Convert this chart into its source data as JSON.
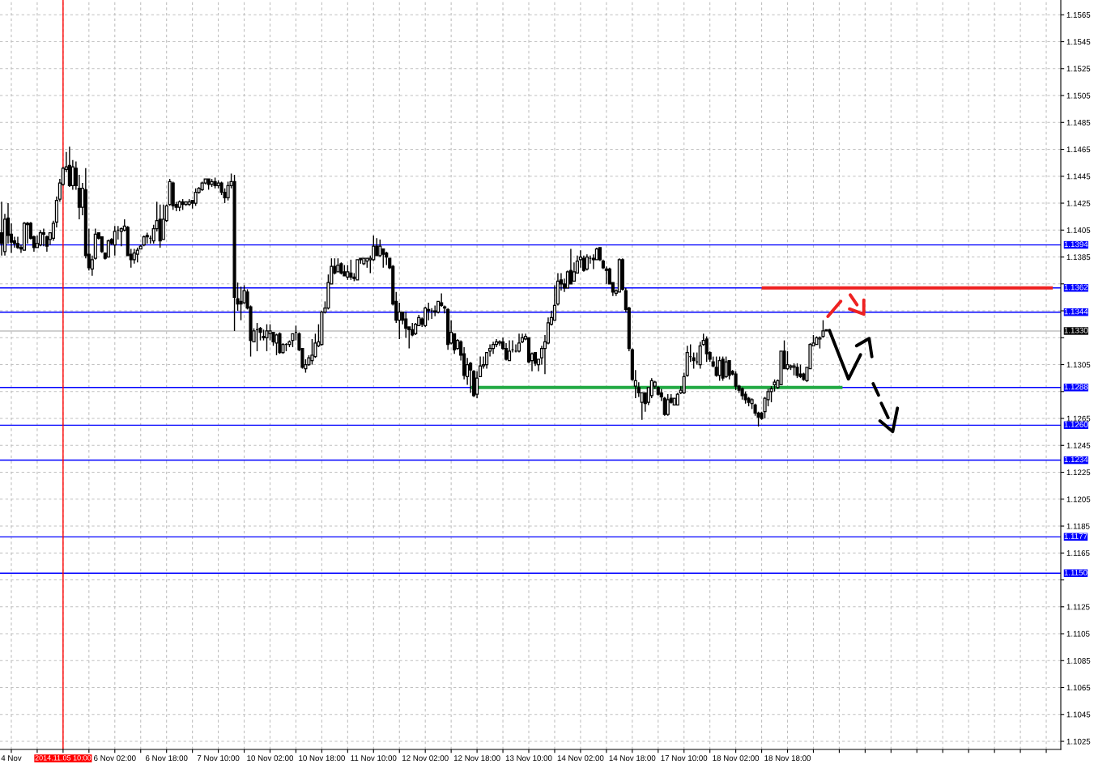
{
  "chart_data": {
    "type": "candlestick",
    "color": "#000000",
    "categories": [
      null,
      null,
      null,
      "4 Nov",
      null,
      null,
      null,
      null,
      null,
      null,
      null,
      null,
      null,
      null,
      null,
      null,
      null,
      null,
      null,
      "2014.11.05 10:00",
      null,
      null,
      null,
      null,
      null,
      null,
      null,
      null,
      null,
      null,
      null,
      null,
      null,
      null,
      null,
      "6 Nov 02:00",
      null,
      null,
      null,
      null,
      null,
      null,
      null,
      null,
      null,
      null,
      null,
      null,
      null,
      null,
      null,
      "6 Nov 18:00",
      null,
      null,
      null,
      null,
      null,
      null,
      null,
      null,
      null,
      null,
      null,
      null,
      null,
      null,
      null,
      "7 Nov 10:00",
      null,
      null,
      null,
      null,
      null,
      null,
      null,
      null,
      null,
      null,
      null,
      null,
      null,
      null,
      null,
      "10 Nov 02:00",
      null,
      null,
      null,
      null,
      null,
      null,
      null,
      null,
      null,
      null,
      null,
      null,
      null,
      null,
      null,
      "10 Nov 18:00",
      null,
      null,
      null,
      null,
      null,
      null,
      null,
      null,
      null,
      null,
      null,
      null,
      null,
      null,
      null,
      "11 Nov 10:00",
      null,
      null,
      null,
      null,
      null,
      null,
      null,
      null,
      null,
      null,
      null,
      null,
      null,
      null,
      null,
      "12 Nov 02:00",
      null,
      null,
      null,
      null,
      null,
      null,
      null,
      null,
      null,
      null,
      null,
      null,
      null,
      null,
      null,
      "12 Nov 18:00",
      null,
      null,
      null,
      null,
      null,
      null,
      null,
      null,
      null,
      null,
      null,
      null,
      null,
      null,
      null,
      "13 Nov 10:00",
      null,
      null,
      null,
      null,
      null,
      null,
      null,
      null,
      null,
      null,
      null,
      null,
      null,
      null,
      null,
      "14 Nov 02:00",
      null,
      null,
      null,
      null,
      null,
      null,
      null,
      null,
      null,
      null,
      null,
      null,
      null,
      null,
      null,
      "14 Nov 18:00",
      null,
      null,
      null,
      null,
      null,
      null,
      null,
      null,
      null,
      null,
      null,
      null,
      null,
      null,
      null,
      "17 Nov 10:00",
      null,
      null,
      null,
      null,
      null,
      null,
      null,
      null,
      null,
      null,
      null,
      null,
      null,
      null,
      null,
      "18 Nov 02:00",
      null,
      null,
      null,
      null,
      null,
      null,
      null,
      null,
      null,
      null,
      null,
      null,
      null,
      null,
      null,
      "18 Nov 18:00",
      null,
      null,
      null,
      null,
      null,
      null,
      null,
      null,
      null,
      null,
      null,
      null,
      null,
      null,
      null,
      null,
      null,
      null,
      null,
      null,
      null,
      null,
      null,
      null,
      null,
      null,
      null,
      null,
      null,
      null,
      null,
      null,
      null,
      null,
      null,
      null,
      null,
      null,
      null,
      null,
      null,
      null,
      null,
      null,
      null,
      null,
      null,
      null,
      null,
      null,
      null,
      null,
      null,
      null,
      null,
      null,
      null,
      null,
      null,
      null,
      null,
      null,
      null,
      null,
      null,
      null,
      null,
      null,
      null,
      null,
      null,
      null,
      null,
      null,
      null,
      null,
      null,
      null,
      null,
      null,
      null,
      null,
      null,
      null
    ],
    "ohlc": [
      [
        1.1403,
        1.1426,
        1.1386,
        1.1395
      ],
      [
        1.1389,
        1.1417,
        1.1386,
        1.1413
      ],
      [
        1.1414,
        1.1425,
        1.1395,
        1.1401
      ],
      [
        1.1402,
        1.141,
        1.1388,
        1.1396
      ],
      [
        1.1397,
        1.14,
        1.1392,
        1.1395
      ],
      [
        1.1395,
        1.14,
        1.1391,
        1.1392
      ],
      [
        1.1392,
        1.1394,
        1.1388,
        1.1391
      ],
      [
        1.139,
        1.1411,
        1.139,
        1.141
      ],
      [
        1.141,
        1.1411,
        1.1395,
        1.1409
      ],
      [
        1.141,
        1.1411,
        1.1398,
        1.1399
      ],
      [
        1.14,
        1.1401,
        1.1389,
        1.1392
      ],
      [
        1.1392,
        1.1401,
        1.1392,
        1.1395
      ],
      [
        1.1394,
        1.1405,
        1.1393,
        1.1403
      ],
      [
        1.1403,
        1.1406,
        1.1393,
        1.1402
      ],
      [
        1.14,
        1.1401,
        1.1389,
        1.1393
      ],
      [
        1.1398,
        1.1403,
        1.1394,
        1.1403
      ],
      [
        1.1399,
        1.1412,
        1.1397,
        1.141
      ],
      [
        1.1411,
        1.143,
        1.1407,
        1.1427
      ],
      [
        1.1428,
        1.1443,
        1.1426,
        1.144
      ],
      [
        1.1439,
        1.1452,
        1.1438,
        1.1451
      ],
      [
        1.145,
        1.1463,
        1.1448,
        1.1452
      ],
      [
        1.1453,
        1.1467,
        1.1437,
        1.1438
      ],
      [
        1.1438,
        1.1457,
        1.1435,
        1.1452
      ],
      [
        1.1451,
        1.1456,
        1.1435,
        1.1438
      ],
      [
        1.1436,
        1.1446,
        1.1413,
        1.1422
      ],
      [
        1.1422,
        1.144,
        1.1416,
        1.1436
      ],
      [
        1.1435,
        1.1451,
        1.1384,
        1.1386
      ],
      [
        1.1387,
        1.1406,
        1.1375,
        1.1377
      ],
      [
        1.1376,
        1.1386,
        1.1371,
        1.1383
      ],
      [
        1.1384,
        1.1406,
        1.1383,
        1.1402
      ],
      [
        1.1403,
        1.1403,
        1.1398,
        1.1399
      ],
      [
        1.14,
        1.14,
        1.1388,
        1.1389
      ],
      [
        1.1388,
        1.1388,
        1.1383,
        1.1384
      ],
      [
        1.1385,
        1.1398,
        1.1385,
        1.1397
      ],
      [
        1.1398,
        1.1399,
        1.1394,
        1.1395
      ],
      [
        1.1394,
        1.1408,
        1.1386,
        1.1404
      ],
      [
        1.1405,
        1.1408,
        1.1398,
        1.1405
      ],
      [
        1.1404,
        1.1407,
        1.1393,
        1.1406
      ],
      [
        1.1405,
        1.1413,
        1.1404,
        1.1408
      ],
      [
        1.1407,
        1.1408,
        1.1386,
        1.1386
      ],
      [
        1.1387,
        1.1391,
        1.1377,
        1.1383
      ],
      [
        1.1383,
        1.1391,
        1.138,
        1.1388
      ],
      [
        1.1387,
        1.1392,
        1.1381,
        1.139
      ],
      [
        1.1391,
        1.1394,
        1.1391,
        1.1393
      ],
      [
        1.1394,
        1.1401,
        1.1393,
        1.14
      ],
      [
        1.1401,
        1.1403,
        1.1395,
        1.14
      ],
      [
        1.1399,
        1.1401,
        1.1395,
        1.1399
      ],
      [
        1.1397,
        1.1409,
        1.1395,
        1.1406
      ],
      [
        1.1406,
        1.1426,
        1.1404,
        1.1412
      ],
      [
        1.1413,
        1.1424,
        1.1392,
        1.1397
      ],
      [
        1.1398,
        1.1424,
        1.1398,
        1.1413
      ],
      [
        1.1412,
        1.1424,
        1.1411,
        1.1423
      ],
      [
        1.1424,
        1.1443,
        1.1423,
        1.1441
      ],
      [
        1.144,
        1.1441,
        1.142,
        1.1423
      ],
      [
        1.1424,
        1.1426,
        1.1419,
        1.1422
      ],
      [
        1.1422,
        1.1427,
        1.1419,
        1.1426
      ],
      [
        1.1426,
        1.1428,
        1.142,
        1.1424
      ],
      [
        1.1424,
        1.1426,
        1.1423,
        1.1426
      ],
      [
        1.1424,
        1.1428,
        1.1423,
        1.1426
      ],
      [
        1.1427,
        1.1427,
        1.1421,
        1.1425
      ],
      [
        1.1425,
        1.1436,
        1.1423,
        1.1433
      ],
      [
        1.1433,
        1.1437,
        1.1432,
        1.1436
      ],
      [
        1.1435,
        1.1441,
        1.1434,
        1.144
      ],
      [
        1.144,
        1.1443,
        1.1439,
        1.1443
      ],
      [
        1.1443,
        1.1443,
        1.1435,
        1.1439
      ],
      [
        1.1439,
        1.1443,
        1.1437,
        1.1441
      ],
      [
        1.1441,
        1.1444,
        1.1436,
        1.1438
      ],
      [
        1.1438,
        1.1442,
        1.1436,
        1.144
      ],
      [
        1.144,
        1.1441,
        1.1431,
        1.1433
      ],
      [
        1.1433,
        1.1436,
        1.1425,
        1.1429
      ],
      [
        1.1429,
        1.1441,
        1.1427,
        1.1438
      ],
      [
        1.1438,
        1.1447,
        1.1436,
        1.1441
      ],
      [
        1.1441,
        1.1446,
        1.133,
        1.1355
      ],
      [
        1.1354,
        1.1366,
        1.1345,
        1.135
      ],
      [
        1.1352,
        1.1363,
        1.1338,
        1.135
      ],
      [
        1.1351,
        1.1364,
        1.135,
        1.136
      ],
      [
        1.1359,
        1.1361,
        1.1346,
        1.1347
      ],
      [
        1.1348,
        1.1349,
        1.1311,
        1.1323
      ],
      [
        1.1322,
        1.1332,
        1.1322,
        1.133
      ],
      [
        1.1331,
        1.1336,
        1.1315,
        1.1331
      ],
      [
        1.1332,
        1.1333,
        1.1323,
        1.1329
      ],
      [
        1.1326,
        1.1331,
        1.1323,
        1.1325
      ],
      [
        1.1325,
        1.1335,
        1.1315,
        1.133
      ],
      [
        1.1328,
        1.1335,
        1.1323,
        1.133
      ],
      [
        1.1329,
        1.1329,
        1.1319,
        1.1322
      ],
      [
        1.1321,
        1.1328,
        1.1312,
        1.1327
      ],
      [
        1.1328,
        1.1329,
        1.1313,
        1.1314
      ],
      [
        1.1314,
        1.1321,
        1.1313,
        1.132
      ],
      [
        1.132,
        1.1321,
        1.1315,
        1.132
      ],
      [
        1.132,
        1.1323,
        1.1318,
        1.1322
      ],
      [
        1.1323,
        1.1328,
        1.1318,
        1.1328
      ],
      [
        1.1329,
        1.1334,
        1.1323,
        1.1329
      ],
      [
        1.1328,
        1.1329,
        1.1315,
        1.1316
      ],
      [
        1.1317,
        1.1317,
        1.1302,
        1.1303
      ],
      [
        1.1302,
        1.1309,
        1.1299,
        1.1305
      ],
      [
        1.1305,
        1.1312,
        1.1304,
        1.131
      ],
      [
        1.1308,
        1.1324,
        1.1305,
        1.1312
      ],
      [
        1.1311,
        1.1328,
        1.131,
        1.1321
      ],
      [
        1.1319,
        1.1335,
        1.1318,
        1.1322
      ],
      [
        1.132,
        1.1345,
        1.1319,
        1.1344
      ],
      [
        1.1344,
        1.1352,
        1.1343,
        1.1347
      ],
      [
        1.1347,
        1.1372,
        1.1346,
        1.1366
      ],
      [
        1.1365,
        1.1384,
        1.1365,
        1.1378
      ],
      [
        1.1378,
        1.1384,
        1.1372,
        1.1373
      ],
      [
        1.1374,
        1.1384,
        1.1374,
        1.1379
      ],
      [
        1.138,
        1.1381,
        1.1372,
        1.1373
      ],
      [
        1.1374,
        1.1379,
        1.1371,
        1.1371
      ],
      [
        1.137,
        1.1379,
        1.1368,
        1.1374
      ],
      [
        1.1373,
        1.1383,
        1.1368,
        1.137
      ],
      [
        1.137,
        1.1373,
        1.1367,
        1.1369
      ],
      [
        1.1368,
        1.1383,
        1.1368,
        1.1383
      ],
      [
        1.1384,
        1.1384,
        1.138,
        1.1383
      ],
      [
        1.138,
        1.1384,
        1.1379,
        1.1384
      ],
      [
        1.1382,
        1.1384,
        1.1377,
        1.1384
      ],
      [
        1.1383,
        1.1386,
        1.1373,
        1.1384
      ],
      [
        1.1383,
        1.1401,
        1.1382,
        1.1393
      ],
      [
        1.1393,
        1.1399,
        1.1386,
        1.1386
      ],
      [
        1.1386,
        1.1398,
        1.1385,
        1.1393
      ],
      [
        1.1391,
        1.1391,
        1.1377,
        1.1387
      ],
      [
        1.1388,
        1.1389,
        1.1379,
        1.1385
      ],
      [
        1.1384,
        1.1384,
        1.1376,
        1.1377
      ],
      [
        1.1378,
        1.1379,
        1.1349,
        1.135
      ],
      [
        1.1352,
        1.1359,
        1.1336,
        1.1338
      ],
      [
        1.1338,
        1.1351,
        1.1324,
        1.1344
      ],
      [
        1.1344,
        1.1344,
        1.1335,
        1.1338
      ],
      [
        1.1339,
        1.1344,
        1.1325,
        1.1332
      ],
      [
        1.1333,
        1.1333,
        1.1317,
        1.1331
      ],
      [
        1.1331,
        1.1336,
        1.1326,
        1.1327
      ],
      [
        1.1328,
        1.1336,
        1.1327,
        1.1335
      ],
      [
        1.1334,
        1.1342,
        1.1334,
        1.134
      ],
      [
        1.1339,
        1.134,
        1.1333,
        1.1335
      ],
      [
        1.1334,
        1.1348,
        1.1333,
        1.1347
      ],
      [
        1.1346,
        1.1351,
        1.1338,
        1.1345
      ],
      [
        1.1345,
        1.1347,
        1.1339,
        1.1345
      ],
      [
        1.1345,
        1.1349,
        1.1341,
        1.1344
      ],
      [
        1.1344,
        1.1352,
        1.1343,
        1.1352
      ],
      [
        1.1351,
        1.1358,
        1.1348,
        1.1349
      ],
      [
        1.1348,
        1.1349,
        1.1343,
        1.1347
      ],
      [
        1.1346,
        1.1347,
        1.1316,
        1.132
      ],
      [
        1.1321,
        1.1338,
        1.132,
        1.1329
      ],
      [
        1.1328,
        1.1328,
        1.1313,
        1.1316
      ],
      [
        1.1317,
        1.1324,
        1.1316,
        1.1323
      ],
      [
        1.1322,
        1.1323,
        1.1308,
        1.1312
      ],
      [
        1.1313,
        1.1318,
        1.1294,
        1.1297
      ],
      [
        1.1296,
        1.131,
        1.129,
        1.1305
      ],
      [
        1.1306,
        1.1307,
        1.1284,
        1.1301
      ],
      [
        1.13,
        1.1301,
        1.1281,
        1.1282
      ],
      [
        1.1283,
        1.13,
        1.128,
        1.1295
      ],
      [
        1.1296,
        1.1311,
        1.1296,
        1.1304
      ],
      [
        1.1304,
        1.1311,
        1.1302,
        1.1305
      ],
      [
        1.1305,
        1.1314,
        1.1302,
        1.1314
      ],
      [
        1.1315,
        1.132,
        1.1311,
        1.1317
      ],
      [
        1.1317,
        1.1322,
        1.1313,
        1.132
      ],
      [
        1.132,
        1.1324,
        1.1318,
        1.1322
      ],
      [
        1.1321,
        1.1323,
        1.1319,
        1.1322
      ],
      [
        1.1322,
        1.1325,
        1.1316,
        1.1317
      ],
      [
        1.1317,
        1.1321,
        1.1308,
        1.1309
      ],
      [
        1.1308,
        1.1323,
        1.1308,
        1.1315
      ],
      [
        1.1316,
        1.1323,
        1.1314,
        1.1316
      ],
      [
        1.1315,
        1.132,
        1.1314,
        1.1315
      ],
      [
        1.1315,
        1.1328,
        1.1314,
        1.1321
      ],
      [
        1.1322,
        1.1328,
        1.1321,
        1.1325
      ],
      [
        1.1324,
        1.1328,
        1.1323,
        1.1326
      ],
      [
        1.1325,
        1.1325,
        1.1306,
        1.1307
      ],
      [
        1.1308,
        1.1314,
        1.13,
        1.1313
      ],
      [
        1.1314,
        1.1314,
        1.1304,
        1.1306
      ],
      [
        1.1305,
        1.1309,
        1.13,
        1.1309
      ],
      [
        1.131,
        1.1319,
        1.1305,
        1.1317
      ],
      [
        1.1317,
        1.1327,
        1.1298,
        1.1322
      ],
      [
        1.1321,
        1.134,
        1.132,
        1.1336
      ],
      [
        1.1335,
        1.1345,
        1.1334,
        1.134
      ],
      [
        1.1338,
        1.1364,
        1.1338,
        1.1349
      ],
      [
        1.135,
        1.1373,
        1.1349,
        1.1367
      ],
      [
        1.1368,
        1.1373,
        1.136,
        1.1365
      ],
      [
        1.1365,
        1.1369,
        1.1359,
        1.1362
      ],
      [
        1.1362,
        1.1375,
        1.1362,
        1.1374
      ],
      [
        1.1375,
        1.1391,
        1.1365,
        1.1365
      ],
      [
        1.1367,
        1.1381,
        1.1367,
        1.1374
      ],
      [
        1.1373,
        1.1386,
        1.1373,
        1.1382
      ],
      [
        1.1383,
        1.139,
        1.1377,
        1.1385
      ],
      [
        1.1384,
        1.1386,
        1.1374,
        1.1375
      ],
      [
        1.1376,
        1.1387,
        1.1375,
        1.1385
      ],
      [
        1.1384,
        1.1386,
        1.138,
        1.1384
      ],
      [
        1.1384,
        1.1387,
        1.1376,
        1.1383
      ],
      [
        1.1383,
        1.1392,
        1.1383,
        1.1391
      ],
      [
        1.1392,
        1.1392,
        1.1382,
        1.1383
      ],
      [
        1.1382,
        1.1383,
        1.1376,
        1.1377
      ],
      [
        1.1376,
        1.1378,
        1.1365,
        1.1375
      ],
      [
        1.1376,
        1.1377,
        1.1365,
        1.1365
      ],
      [
        1.1366,
        1.1366,
        1.1356,
        1.1359
      ],
      [
        1.1358,
        1.1361,
        1.1356,
        1.136
      ],
      [
        1.1359,
        1.1384,
        1.1359,
        1.1383
      ],
      [
        1.1383,
        1.1384,
        1.136,
        1.1361
      ],
      [
        1.136,
        1.1362,
        1.1344,
        1.1346
      ],
      [
        1.1347,
        1.1348,
        1.1315,
        1.1317
      ],
      [
        1.1316,
        1.1317,
        1.1293,
        1.1294
      ],
      [
        1.1289,
        1.1301,
        1.128,
        1.1293
      ],
      [
        1.1288,
        1.1292,
        1.1281,
        1.1284
      ],
      [
        1.1277,
        1.1284,
        1.1264,
        1.1284
      ],
      [
        1.1284,
        1.1284,
        1.127,
        1.1276
      ],
      [
        1.1277,
        1.1288,
        1.1275,
        1.1288
      ],
      [
        1.1282,
        1.1295,
        1.128,
        1.1293
      ],
      [
        1.1289,
        1.1293,
        1.1287,
        1.1292
      ],
      [
        1.1288,
        1.1289,
        1.1282,
        1.1283
      ],
      [
        1.1284,
        1.1287,
        1.1278,
        1.1281
      ],
      [
        1.128,
        1.1281,
        1.1267,
        1.1268
      ],
      [
        1.1268,
        1.1283,
        1.1267,
        1.1279
      ],
      [
        1.128,
        1.1283,
        1.1276,
        1.1277
      ],
      [
        1.1275,
        1.128,
        1.1275,
        1.128
      ],
      [
        1.1275,
        1.1284,
        1.1275,
        1.1283
      ],
      [
        1.1284,
        1.1289,
        1.1283,
        1.1286
      ],
      [
        1.1284,
        1.1299,
        1.1283,
        1.1296
      ],
      [
        1.1297,
        1.1319,
        1.1296,
        1.1314
      ],
      [
        1.1311,
        1.132,
        1.1307,
        1.1311
      ],
      [
        1.131,
        1.1314,
        1.1302,
        1.1308
      ],
      [
        1.1307,
        1.1314,
        1.1305,
        1.1307
      ],
      [
        1.1305,
        1.1322,
        1.1302,
        1.1319
      ],
      [
        1.132,
        1.1328,
        1.1319,
        1.1323
      ],
      [
        1.1324,
        1.1326,
        1.1307,
        1.1313
      ],
      [
        1.1314,
        1.1315,
        1.1307,
        1.1309
      ],
      [
        1.1307,
        1.1311,
        1.1303,
        1.1304
      ],
      [
        1.1303,
        1.1311,
        1.1296,
        1.1297
      ],
      [
        1.1297,
        1.1311,
        1.1293,
        1.1308
      ],
      [
        1.1309,
        1.1311,
        1.1293,
        1.1295
      ],
      [
        1.1296,
        1.1311,
        1.1295,
        1.1307
      ],
      [
        1.1308,
        1.1308,
        1.1294,
        1.1297
      ],
      [
        1.13,
        1.1301,
        1.1297,
        1.1298
      ],
      [
        1.1298,
        1.13,
        1.1286,
        1.1289
      ],
      [
        1.1289,
        1.129,
        1.1284,
        1.1286
      ],
      [
        1.1287,
        1.1288,
        1.1279,
        1.1282
      ],
      [
        1.1283,
        1.1285,
        1.1276,
        1.1279
      ],
      [
        1.128,
        1.1281,
        1.1274,
        1.1277
      ],
      [
        1.1276,
        1.128,
        1.1272,
        1.1279
      ],
      [
        1.1275,
        1.1276,
        1.1267,
        1.1269
      ],
      [
        1.1269,
        1.127,
        1.1259,
        1.1266
      ],
      [
        1.1269,
        1.127,
        1.1264,
        1.1265
      ],
      [
        1.127,
        1.1281,
        1.1265,
        1.128
      ],
      [
        1.1279,
        1.1287,
        1.1274,
        1.1285
      ],
      [
        1.1285,
        1.1289,
        1.1277,
        1.1287
      ],
      [
        1.129,
        1.1294,
        1.1285,
        1.1292
      ],
      [
        1.1288,
        1.1294,
        1.1287,
        1.1293
      ],
      [
        1.129,
        1.1315,
        1.129,
        1.1315
      ],
      [
        1.1315,
        1.1323,
        1.1302,
        1.1302
      ],
      [
        1.1302,
        1.1315,
        1.1301,
        1.1305
      ],
      [
        1.1303,
        1.1305,
        1.1301,
        1.1304
      ],
      [
        1.1303,
        1.1306,
        1.1297,
        1.1304
      ],
      [
        1.1303,
        1.1306,
        1.1295,
        1.1297
      ],
      [
        1.1298,
        1.1305,
        1.1295,
        1.1296
      ],
      [
        1.1298,
        1.1299,
        1.1293,
        1.1294
      ],
      [
        1.1293,
        1.1303,
        1.1292,
        1.1303
      ],
      [
        1.1302,
        1.1321,
        1.1302,
        1.132
      ],
      [
        1.1319,
        1.1327,
        1.1319,
        1.1321
      ],
      [
        1.132,
        1.1326,
        1.132,
        1.1325
      ],
      [
        1.1324,
        1.1326,
        1.1317,
        1.1325
      ],
      [
        1.1326,
        1.1338,
        1.1325,
        1.133
      ],
      [
        1.1331,
        1.1331,
        1.133,
        1.133
      ],
      null,
      null,
      null,
      null,
      null,
      null,
      null,
      null,
      null,
      null,
      null,
      null,
      null,
      null,
      null,
      null,
      null,
      null,
      null,
      null,
      null,
      null,
      null,
      null,
      null,
      null,
      null,
      null,
      null,
      null,
      null,
      null,
      null,
      null,
      null,
      null,
      null,
      null,
      null,
      null,
      null,
      null,
      null,
      null,
      null,
      null,
      null,
      null,
      null,
      null,
      null,
      null,
      null,
      null,
      null,
      null,
      null,
      null,
      null,
      null,
      null,
      null,
      null,
      null,
      null,
      null,
      null,
      null,
      null,
      null,
      null,
      null
    ],
    "series": [
      {
        "type": "line",
        "color": "#22aa44",
        "values": [
          null,
          null,
          null,
          null,
          null,
          null,
          null,
          null,
          null,
          null,
          null,
          null,
          null,
          null,
          null,
          null,
          null,
          null,
          null,
          null,
          null,
          null,
          null,
          null,
          null,
          null,
          null,
          null,
          null,
          null,
          null,
          null,
          null,
          null,
          null,
          null,
          null,
          null,
          null,
          null,
          null,
          null,
          null,
          null,
          null,
          null,
          null,
          null,
          null,
          null,
          null,
          null,
          null,
          null,
          null,
          null,
          null,
          null,
          null,
          null,
          null,
          null,
          null,
          null,
          null,
          null,
          null,
          null,
          null,
          null,
          null,
          null,
          null,
          null,
          null,
          null,
          null,
          null,
          null,
          null,
          null,
          null,
          null,
          null,
          null,
          null,
          null,
          null,
          null,
          null,
          null,
          null,
          null,
          null,
          null,
          null,
          null,
          null,
          null,
          null,
          null,
          null,
          null,
          null,
          null,
          null,
          null,
          null,
          null,
          null,
          null,
          null,
          null,
          null,
          null,
          null,
          null,
          null,
          null,
          null,
          null,
          null,
          null,
          null,
          null,
          null,
          null,
          null,
          null,
          null,
          null,
          null,
          null,
          null,
          null,
          null,
          null,
          null,
          null,
          null,
          null,
          null,
          null,
          null,
          null,
          1.1288,
          1.1288,
          1.1288,
          1.1288,
          1.1288,
          1.1288,
          1.1288,
          1.1288,
          1.1288,
          1.1288,
          1.1288,
          1.1288,
          1.1288,
          1.1288,
          1.1288,
          1.1288,
          1.1288,
          1.1288,
          1.1288,
          1.1288,
          1.1288,
          1.1288,
          1.1288,
          1.1288,
          1.1288,
          1.1288,
          1.1288,
          1.1288,
          1.1288,
          1.1288,
          1.1288,
          1.1288,
          1.1288,
          1.1288,
          1.1288,
          1.1288,
          1.1288,
          1.1288,
          1.1288,
          1.1288,
          1.1288,
          1.1288,
          1.1288,
          1.1288,
          1.1288,
          1.1288,
          1.1288,
          1.1288,
          1.1288,
          1.1288,
          1.1288,
          1.1288,
          1.1288,
          1.1288,
          1.1288,
          1.1288,
          1.1288,
          1.1288,
          1.1288,
          1.1288,
          1.1288,
          1.1288,
          1.1288,
          1.1288,
          1.1288,
          1.1288,
          1.1288,
          1.1288,
          1.1288,
          1.1288,
          1.1288,
          1.1288,
          1.1288,
          1.1288,
          1.1288,
          1.1288,
          1.1288,
          1.1288,
          1.1288,
          1.1288,
          1.1288,
          1.1288,
          1.1288,
          1.1288,
          1.1288,
          1.1288,
          1.1288,
          1.1288,
          1.1288,
          1.1288,
          1.1288,
          1.1288,
          1.1288,
          1.1288,
          1.1288,
          1.1288,
          1.1288,
          1.1288,
          1.1288,
          1.1288,
          1.1288,
          1.1288,
          1.1288,
          1.1288,
          1.1288,
          1.1288,
          1.1288,
          1.1288,
          1.1288,
          1.1288,
          1.1288,
          1.1288,
          1.1288,
          1.1288,
          1.1288,
          1.1288,
          null,
          null,
          null,
          null,
          null,
          null,
          null,
          null,
          null,
          null,
          null,
          null,
          null,
          null,
          null,
          null,
          null,
          null,
          null,
          null,
          null,
          null,
          null,
          null,
          null,
          null,
          null,
          null,
          null,
          null,
          null,
          null,
          null,
          null,
          null,
          null,
          null,
          null,
          null,
          null,
          null,
          null,
          null,
          null,
          null,
          null,
          null,
          null,
          null,
          null,
          null,
          null,
          null,
          null,
          null,
          null,
          null,
          null,
          null,
          null,
          null,
          null,
          null,
          null,
          null,
          null,
          null
        ]
      },
      {
        "type": "line",
        "color": "#ee2222",
        "values": [
          null,
          null,
          null,
          null,
          null,
          null,
          null,
          null,
          null,
          null,
          null,
          null,
          null,
          null,
          null,
          null,
          null,
          null,
          null,
          null,
          null,
          null,
          null,
          null,
          null,
          null,
          null,
          null,
          null,
          null,
          null,
          null,
          null,
          null,
          null,
          null,
          null,
          null,
          null,
          null,
          null,
          null,
          null,
          null,
          null,
          null,
          null,
          null,
          null,
          null,
          null,
          null,
          null,
          null,
          null,
          null,
          null,
          null,
          null,
          null,
          null,
          null,
          null,
          null,
          null,
          null,
          null,
          null,
          null,
          null,
          null,
          null,
          null,
          null,
          null,
          null,
          null,
          null,
          null,
          null,
          null,
          null,
          null,
          null,
          null,
          null,
          null,
          null,
          null,
          null,
          null,
          null,
          null,
          null,
          null,
          null,
          null,
          null,
          null,
          null,
          null,
          null,
          null,
          null,
          null,
          null,
          null,
          null,
          null,
          null,
          null,
          null,
          null,
          null,
          null,
          null,
          null,
          null,
          null,
          null,
          null,
          null,
          null,
          null,
          null,
          null,
          null,
          null,
          null,
          null,
          null,
          null,
          null,
          null,
          null,
          null,
          null,
          null,
          null,
          null,
          null,
          null,
          null,
          null,
          null,
          null,
          null,
          null,
          null,
          null,
          null,
          null,
          null,
          null,
          null,
          null,
          null,
          null,
          null,
          null,
          null,
          null,
          null,
          null,
          null,
          null,
          null,
          null,
          null,
          null,
          null,
          null,
          null,
          null,
          null,
          null,
          null,
          null,
          null,
          null,
          null,
          null,
          null,
          null,
          null,
          null,
          null,
          null,
          null,
          null,
          null,
          null,
          null,
          null,
          null,
          null,
          null,
          null,
          null,
          null,
          null,
          null,
          null,
          null,
          null,
          null,
          null,
          null,
          null,
          null,
          null,
          null,
          null,
          null,
          null,
          null,
          null,
          null,
          null,
          null,
          null,
          null,
          null,
          null,
          null,
          null,
          null,
          null,
          null,
          null,
          null,
          null,
          null,
          null,
          null,
          1.1362,
          1.1362,
          1.1362,
          1.1362,
          1.1362,
          1.1362,
          1.1362,
          1.1362,
          1.1362,
          1.1362,
          1.1362,
          1.1362,
          1.1362,
          1.1362,
          1.1362,
          1.1362,
          1.1362,
          1.1362,
          1.1362,
          1.1362,
          1.1362,
          1.1362,
          1.1362,
          1.1362,
          1.1362,
          1.1362,
          1.1362,
          1.1362,
          1.1362,
          1.1362,
          1.1362,
          1.1362,
          1.1362,
          1.1362,
          1.1362,
          1.1362,
          1.1362,
          1.1362,
          1.1362,
          1.1362,
          1.1362,
          1.1362,
          1.1362,
          1.1362,
          1.1362,
          1.1362,
          1.1362,
          1.1362,
          1.1362,
          1.1362,
          1.1362,
          1.1362,
          1.1362,
          1.1362,
          1.1362,
          1.1362,
          1.1362,
          1.1362,
          1.1362,
          1.1362,
          1.1362,
          1.1362,
          1.1362,
          1.1362,
          1.1362,
          1.1362,
          1.1362,
          1.1362,
          1.1362,
          1.1362,
          1.1362,
          1.1362,
          1.1362,
          1.1362,
          1.1362,
          1.1362,
          1.1362,
          1.1362,
          1.1362,
          1.1362,
          1.1362,
          1.1362,
          1.1362,
          1.1362,
          1.1362,
          1.1362,
          1.1362,
          1.1362,
          1.1362,
          1.1362,
          1.1362,
          null,
          null
        ]
      }
    ],
    "ref_lines": [
      {
        "axis": "y",
        "value": 1.1394,
        "label": "1.1394",
        "color": "#0000ff"
      },
      {
        "axis": "y",
        "value": 1.1362,
        "label": "1.1362",
        "color": "#0000ff"
      },
      {
        "axis": "y",
        "value": 1.1344,
        "label": "1.1344",
        "color": "#0000ff"
      },
      {
        "axis": "y",
        "value": 1.133,
        "label": "1.1330",
        "color": "#c0c0c0"
      },
      {
        "axis": "y",
        "value": 1.1288,
        "label": "1.1288",
        "color": "#0000ff"
      },
      {
        "axis": "y",
        "value": 1.126,
        "label": "1.1260",
        "color": "#0000ff"
      },
      {
        "axis": "y",
        "value": 1.1234,
        "label": "1.1234",
        "color": "#0000ff"
      },
      {
        "axis": "y",
        "value": 1.1177,
        "label": "1.1177",
        "color": "#0000ff"
      },
      {
        "axis": "y",
        "value": 1.115,
        "label": "1.1150",
        "color": "#0000ff"
      },
      {
        "axis": "x",
        "value": "2014.11.05 10:00",
        "color": "#ff0000"
      }
    ],
    "ylim": [
      1.1019,
      1.1576
    ],
    "yticks": [
      1.1025,
      1.1045,
      1.1065,
      1.1085,
      1.1105,
      1.1125,
      {
        "value": 1.1145,
        "label": null
      },
      1.1165,
      1.1185,
      1.1205,
      1.1225,
      1.1245,
      1.1265,
      {
        "value": 1.1285,
        "label": null
      },
      1.1305,
      {
        "value": 1.1325,
        "label": null
      },
      {
        "value": 1.1345,
        "label": null
      },
      {
        "value": 1.1365,
        "label": null
      },
      1.1385,
      1.1405,
      1.1425,
      1.1445,
      1.1465,
      1.1485,
      1.1505,
      1.1525,
      1.1545,
      1.1565
    ],
    "grid": true
  }
}
